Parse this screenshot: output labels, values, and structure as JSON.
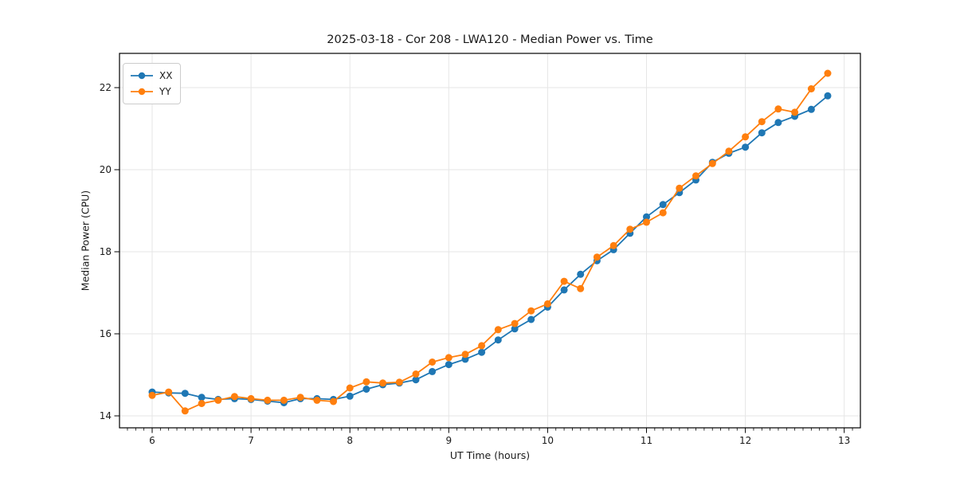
{
  "chart_data": {
    "type": "line",
    "title": "2025-03-18 - Cor 208 - LWA120 - Median Power vs. Time",
    "xlabel": "UT Time (hours)",
    "ylabel": "Median Power (CPU)",
    "x_ticks": [
      6,
      7,
      8,
      9,
      10,
      11,
      12,
      13
    ],
    "y_ticks": [
      14,
      16,
      18,
      20,
      22
    ],
    "xlim": [
      5.67,
      13.16
    ],
    "ylim": [
      13.71,
      22.84
    ],
    "grid": true,
    "legend_position": "upper-left",
    "x": [
      6.0,
      6.167,
      6.333,
      6.5,
      6.667,
      6.833,
      7.0,
      7.167,
      7.333,
      7.5,
      7.667,
      7.833,
      8.0,
      8.167,
      8.333,
      8.5,
      8.667,
      8.833,
      9.0,
      9.167,
      9.333,
      9.5,
      9.667,
      9.833,
      10.0,
      10.167,
      10.333,
      10.5,
      10.667,
      10.833,
      11.0,
      11.167,
      11.333,
      11.5,
      11.667,
      11.833,
      12.0,
      12.167,
      12.333,
      12.5,
      12.667,
      12.833
    ],
    "series": [
      {
        "name": "XX",
        "color": "#1f77b4",
        "values": [
          14.58,
          14.56,
          14.55,
          14.45,
          14.4,
          14.42,
          14.4,
          14.36,
          14.32,
          14.42,
          14.42,
          14.4,
          14.48,
          14.65,
          14.76,
          14.8,
          14.88,
          15.08,
          15.25,
          15.38,
          15.55,
          15.85,
          16.12,
          16.35,
          16.65,
          17.07,
          17.45,
          17.78,
          18.05,
          18.45,
          18.85,
          19.15,
          19.44,
          19.75,
          20.18,
          20.4,
          20.55,
          20.9,
          21.15,
          21.3,
          21.47,
          21.8
        ]
      },
      {
        "name": "YY",
        "color": "#ff7f0e",
        "values": [
          14.5,
          14.58,
          14.12,
          14.3,
          14.38,
          14.47,
          14.42,
          14.38,
          14.38,
          14.45,
          14.38,
          14.35,
          14.68,
          14.83,
          14.8,
          14.82,
          15.02,
          15.31,
          15.42,
          15.5,
          15.71,
          16.1,
          16.25,
          16.56,
          16.73,
          17.28,
          17.1,
          17.87,
          18.15,
          18.55,
          18.72,
          18.95,
          19.55,
          19.85,
          20.15,
          20.45,
          20.8,
          21.17,
          21.48,
          21.4,
          21.97,
          22.35
        ]
      }
    ],
    "style": {
      "grid_color": "#e6e6e6",
      "spine_color": "#000000",
      "tick_color": "#000000",
      "text_color": "#1a1a1a"
    }
  }
}
